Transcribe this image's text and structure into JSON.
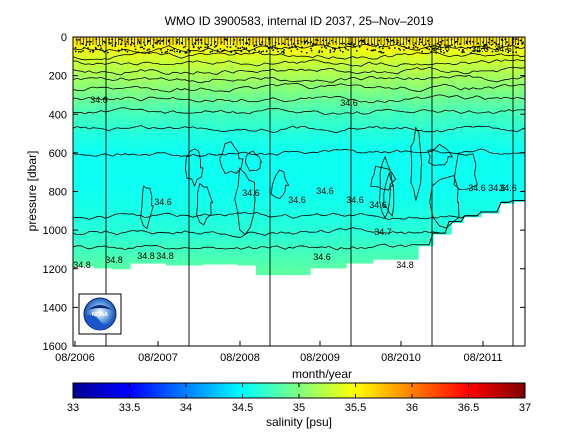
{
  "chart_data": {
    "type": "heatmap",
    "title": "WMO ID 3900583, internal ID 2037, 25–Nov–2019",
    "xlabel": "month/year",
    "ylabel": "pressure [dbar]",
    "x_tick_labels": [
      "08/2006",
      "08/2007",
      "08/2008",
      "08/2009",
      "08/2010",
      "08/2011"
    ],
    "y_tick_labels": [
      "0",
      "200",
      "400",
      "600",
      "800",
      "1000",
      "1200",
      "1400",
      "1600"
    ],
    "y_tick_values": [
      0,
      200,
      400,
      600,
      800,
      1000,
      1200,
      1400,
      1600
    ],
    "ylim": [
      0,
      1600
    ],
    "y_reversed": true,
    "colorbar": {
      "label": "salinity [psu]",
      "min": 33,
      "max": 37,
      "tick_labels": [
        "33",
        "33.5",
        "34",
        "34.5",
        "35",
        "35.5",
        "36",
        "36.5",
        "37"
      ],
      "tick_values": [
        33,
        33.5,
        34,
        34.5,
        35,
        35.5,
        36,
        36.5,
        37
      ]
    },
    "salinity_profile": {
      "pressure": [
        0,
        50,
        100,
        150,
        200,
        250,
        300,
        350,
        400,
        450,
        500,
        550,
        600,
        700,
        800,
        900,
        1000,
        1100,
        1200
      ],
      "salinity": [
        35.6,
        35.5,
        35.35,
        35.25,
        35.15,
        35.05,
        34.95,
        34.85,
        34.75,
        34.7,
        34.62,
        34.58,
        34.55,
        34.55,
        34.55,
        34.6,
        34.65,
        34.75,
        34.85
      ]
    },
    "contour_labels": [
      "34.6",
      "34.6",
      "34.6",
      "34.6",
      "34.6",
      "34.6",
      "34.6",
      "34.6",
      "34.6",
      "34.6",
      "34.6",
      "34.6",
      "34.6",
      "34.6",
      "34.7",
      "34.6",
      "34.8",
      "34.8",
      "34.8",
      "34.8",
      "34.8"
    ],
    "grid": false,
    "legend": "colorbar-bottom"
  },
  "logo": {
    "text": "NOAA"
  },
  "colors": {
    "colormap": [
      "#00008f",
      "#0000ff",
      "#0080ff",
      "#00ffff",
      "#80ff80",
      "#ffff00",
      "#ff8000",
      "#ff0000",
      "#800000"
    ]
  }
}
